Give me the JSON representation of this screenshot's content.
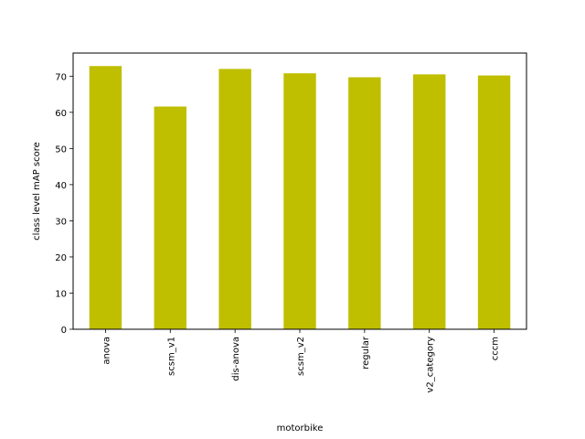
{
  "chart_data": {
    "type": "bar",
    "categories": [
      "anova",
      "scsm_v1",
      "dis-anova",
      "scsm_v2",
      "regular",
      "v2_category",
      "cccm"
    ],
    "values": [
      72.8,
      61.6,
      72.0,
      70.8,
      69.7,
      70.5,
      70.2
    ],
    "xlabel": "motorbike",
    "ylabel": "class level mAP score",
    "ylim": [
      0,
      76.4
    ],
    "yticks": [
      0,
      10,
      20,
      30,
      40,
      50,
      60,
      70
    ],
    "bar_color": "#bfbf00",
    "grid": false,
    "legend": "none"
  }
}
